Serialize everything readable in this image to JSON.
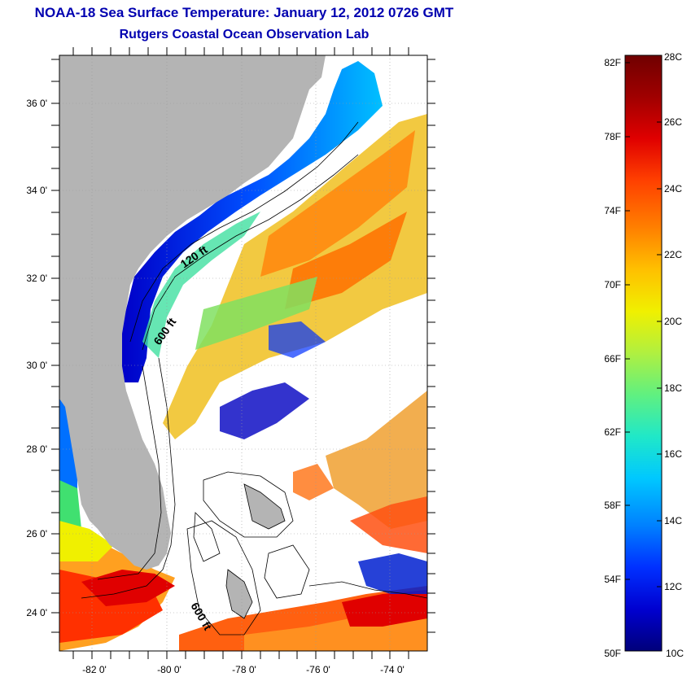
{
  "header": {
    "title": "NOAA-18 Sea Surface Temperature:  January 12, 2012 0726 GMT",
    "subtitle": "Rutgers Coastal Ocean Observation Lab"
  },
  "map": {
    "lon_labels": [
      "-82 0'",
      "-80 0'",
      "-78 0'",
      "-76 0'",
      "-74 0'"
    ],
    "lat_labels": [
      "36 0'",
      "34 0'",
      "32 0'",
      "30 0'",
      "28 0'",
      "26 0'",
      "24 0'"
    ],
    "isobath_labels": [
      "120 ft",
      "600 ft",
      "600 ft"
    ],
    "colors": {
      "land": "#b4b4b4",
      "no_data": "#ffffff",
      "contour": "#000000",
      "grid": "#999999"
    }
  },
  "colorbar": {
    "fahrenheit_labels": [
      "82F",
      "78F",
      "74F",
      "70F",
      "66F",
      "62F",
      "58F",
      "54F",
      "50F"
    ],
    "celsius_labels": [
      "28C",
      "26C",
      "24C",
      "22C",
      "20C",
      "18C",
      "16C",
      "14C",
      "12C",
      "10C"
    ],
    "palette": [
      "#00007a",
      "#0000d0",
      "#0030ff",
      "#0080ff",
      "#00c8ff",
      "#20e8c8",
      "#60f080",
      "#b0f040",
      "#f0f000",
      "#ffc000",
      "#ff8000",
      "#ff4000",
      "#e00000",
      "#a00000",
      "#700000"
    ]
  }
}
